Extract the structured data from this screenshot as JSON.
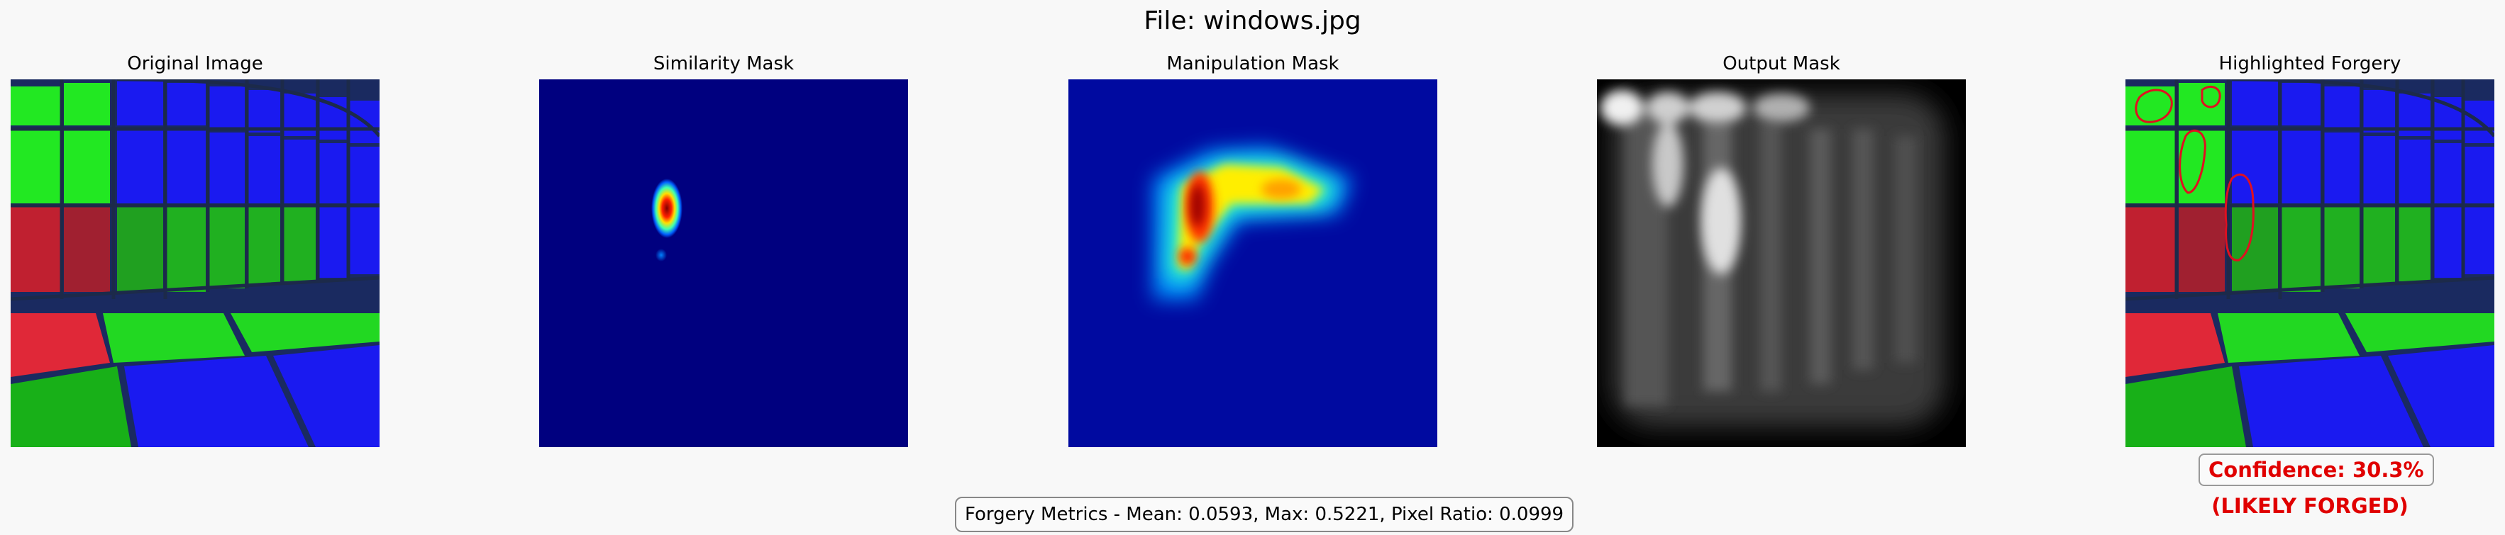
{
  "title": "File: windows.jpg",
  "panels": {
    "original": "Original Image",
    "similarity": "Similarity Mask",
    "manipulation": "Manipulation Mask",
    "output": "Output Mask",
    "highlighted": "Highlighted Forgery"
  },
  "confidence": "Confidence: 30.3%",
  "verdict": "(LIKELY FORGED)",
  "metrics": "Forgery Metrics - Mean: 0.0593, Max: 0.5221, Pixel Ratio: 0.0999",
  "colors": {
    "background": "#f8f8f8",
    "alert": "#e00000",
    "jet_low": "#00007f"
  }
}
